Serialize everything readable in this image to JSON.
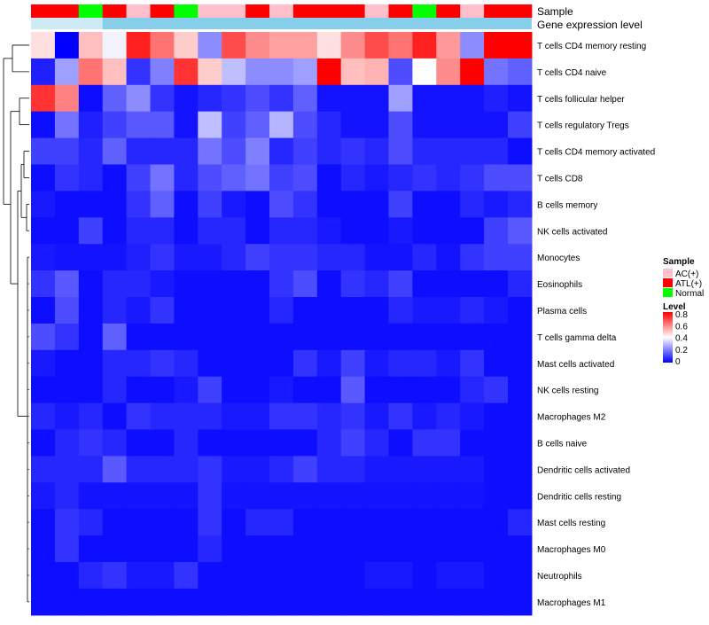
{
  "chart_data": {
    "type": "heatmap",
    "annotation_tracks": [
      "Sample",
      "Gene expression level"
    ],
    "sample_groups": [
      "ATL(+)",
      "ATL(+)",
      "Normal",
      "ATL(+)",
      "AC(+)",
      "ATL(+)",
      "Normal",
      "AC(+)",
      "AC(+)",
      "ATL(+)",
      "AC(+)",
      "ATL(+)",
      "ATL(+)",
      "ATL(+)",
      "AC(+)",
      "ATL(+)",
      "Normal",
      "ATL(+)",
      "AC(+)",
      "ATL(+)",
      "ATL(+)"
    ],
    "rows": [
      "T cells CD4 memory resting",
      "T cells CD4 naive",
      "T cells follicular helper",
      "T cells regulatory  Tregs",
      "T cells CD4 memory activated",
      "T cells CD8",
      "B cells memory",
      "NK cells activated",
      "Monocytes",
      "Eosinophils",
      "Plasma cells",
      "T cells gamma delta",
      "Mast cells activated",
      "NK cells resting",
      "Macrophages M2",
      "B cells naive",
      "Dendritic cells activated",
      "Dendritic cells resting",
      "Mast cells resting",
      "Macrophages M0",
      "Neutrophils",
      "Macrophages M1"
    ],
    "values": [
      [
        0.45,
        0.0,
        0.5,
        0.38,
        0.75,
        0.62,
        0.48,
        0.22,
        0.68,
        0.58,
        0.55,
        0.55,
        0.45,
        0.58,
        0.68,
        0.62,
        0.75,
        0.56,
        0.22,
        0.8,
        0.8
      ],
      [
        0.05,
        0.25,
        0.62,
        0.5,
        0.08,
        0.2,
        0.72,
        0.48,
        0.3,
        0.22,
        0.22,
        0.25,
        0.8,
        0.5,
        0.52,
        0.12,
        0.4,
        0.58,
        0.8,
        0.18,
        0.15
      ],
      [
        0.72,
        0.6,
        0.02,
        0.15,
        0.22,
        0.08,
        0.03,
        0.06,
        0.08,
        0.12,
        0.08,
        0.15,
        0.03,
        0.03,
        0.03,
        0.25,
        0.03,
        0.03,
        0.03,
        0.05,
        0.03
      ],
      [
        0.02,
        0.18,
        0.05,
        0.1,
        0.14,
        0.14,
        0.03,
        0.3,
        0.1,
        0.15,
        0.28,
        0.12,
        0.06,
        0.03,
        0.03,
        0.12,
        0.03,
        0.03,
        0.03,
        0.03,
        0.1
      ],
      [
        0.1,
        0.1,
        0.06,
        0.15,
        0.06,
        0.06,
        0.06,
        0.18,
        0.12,
        0.2,
        0.06,
        0.1,
        0.06,
        0.08,
        0.06,
        0.12,
        0.06,
        0.06,
        0.06,
        0.06,
        0.02
      ],
      [
        0.02,
        0.08,
        0.06,
        0.02,
        0.1,
        0.18,
        0.06,
        0.12,
        0.15,
        0.18,
        0.1,
        0.12,
        0.02,
        0.06,
        0.04,
        0.06,
        0.08,
        0.06,
        0.08,
        0.12,
        0.12
      ],
      [
        0.04,
        0.02,
        0.02,
        0.02,
        0.08,
        0.15,
        0.02,
        0.1,
        0.04,
        0.02,
        0.12,
        0.08,
        0.02,
        0.02,
        0.02,
        0.1,
        0.02,
        0.02,
        0.06,
        0.04,
        0.06
      ],
      [
        0.02,
        0.02,
        0.1,
        0.02,
        0.06,
        0.06,
        0.02,
        0.06,
        0.06,
        0.02,
        0.06,
        0.06,
        0.04,
        0.02,
        0.02,
        0.04,
        0.02,
        0.02,
        0.02,
        0.1,
        0.14
      ],
      [
        0.04,
        0.03,
        0.03,
        0.03,
        0.05,
        0.08,
        0.04,
        0.04,
        0.06,
        0.1,
        0.08,
        0.08,
        0.06,
        0.06,
        0.03,
        0.03,
        0.06,
        0.03,
        0.08,
        0.1,
        0.1
      ],
      [
        0.08,
        0.14,
        0.02,
        0.06,
        0.06,
        0.04,
        0.02,
        0.02,
        0.02,
        0.02,
        0.08,
        0.12,
        0.02,
        0.08,
        0.06,
        0.1,
        0.02,
        0.02,
        0.02,
        0.02,
        0.06
      ],
      [
        0.02,
        0.12,
        0.02,
        0.06,
        0.04,
        0.08,
        0.02,
        0.02,
        0.02,
        0.02,
        0.06,
        0.02,
        0.02,
        0.02,
        0.02,
        0.06,
        0.04,
        0.04,
        0.06,
        0.04,
        0.02
      ],
      [
        0.12,
        0.08,
        0.02,
        0.15,
        0.02,
        0.02,
        0.02,
        0.02,
        0.02,
        0.02,
        0.02,
        0.02,
        0.02,
        0.02,
        0.02,
        0.02,
        0.02,
        0.02,
        0.02,
        0.02,
        0.02
      ],
      [
        0.04,
        0.02,
        0.02,
        0.06,
        0.06,
        0.08,
        0.06,
        0.02,
        0.02,
        0.02,
        0.02,
        0.08,
        0.04,
        0.1,
        0.04,
        0.06,
        0.06,
        0.04,
        0.08,
        0.02,
        0.02
      ],
      [
        0.02,
        0.02,
        0.02,
        0.06,
        0.02,
        0.02,
        0.04,
        0.1,
        0.02,
        0.02,
        0.04,
        0.02,
        0.02,
        0.14,
        0.02,
        0.02,
        0.02,
        0.02,
        0.06,
        0.08,
        0.02
      ],
      [
        0.06,
        0.04,
        0.06,
        0.02,
        0.08,
        0.06,
        0.06,
        0.06,
        0.04,
        0.04,
        0.08,
        0.08,
        0.06,
        0.08,
        0.04,
        0.08,
        0.04,
        0.06,
        0.04,
        0.02,
        0.02
      ],
      [
        0.02,
        0.06,
        0.08,
        0.06,
        0.02,
        0.02,
        0.06,
        0.02,
        0.02,
        0.02,
        0.02,
        0.02,
        0.06,
        0.1,
        0.06,
        0.02,
        0.08,
        0.08,
        0.02,
        0.02,
        0.02
      ],
      [
        0.06,
        0.06,
        0.06,
        0.14,
        0.06,
        0.06,
        0.06,
        0.08,
        0.04,
        0.04,
        0.06,
        0.1,
        0.06,
        0.06,
        0.04,
        0.04,
        0.04,
        0.04,
        0.04,
        0.02,
        0.02
      ],
      [
        0.04,
        0.06,
        0.03,
        0.03,
        0.03,
        0.03,
        0.03,
        0.08,
        0.03,
        0.03,
        0.03,
        0.03,
        0.03,
        0.03,
        0.03,
        0.03,
        0.03,
        0.03,
        0.03,
        0.02,
        0.02
      ],
      [
        0.02,
        0.08,
        0.06,
        0.02,
        0.02,
        0.02,
        0.02,
        0.08,
        0.02,
        0.06,
        0.06,
        0.02,
        0.02,
        0.02,
        0.02,
        0.02,
        0.02,
        0.02,
        0.02,
        0.02,
        0.06
      ],
      [
        0.02,
        0.08,
        0.02,
        0.02,
        0.02,
        0.02,
        0.02,
        0.06,
        0.02,
        0.02,
        0.02,
        0.02,
        0.02,
        0.02,
        0.02,
        0.02,
        0.02,
        0.02,
        0.02,
        0.02,
        0.02
      ],
      [
        0.02,
        0.02,
        0.06,
        0.08,
        0.04,
        0.04,
        0.08,
        0.02,
        0.02,
        0.02,
        0.02,
        0.02,
        0.02,
        0.02,
        0.04,
        0.04,
        0.02,
        0.04,
        0.04,
        0.02,
        0.02
      ],
      [
        0.02,
        0.02,
        0.02,
        0.02,
        0.02,
        0.02,
        0.02,
        0.02,
        0.02,
        0.02,
        0.02,
        0.02,
        0.02,
        0.02,
        0.02,
        0.02,
        0.02,
        0.02,
        0.02,
        0.02,
        0.02
      ]
    ],
    "color_scale": {
      "min": 0,
      "mid": 0.4,
      "max": 0.8,
      "low_color": "#0000ff",
      "mid_color": "#ffffff",
      "high_color": "#ff0000"
    },
    "legend": {
      "sample_title": "Sample",
      "sample_items": [
        {
          "label": "AC(+)",
          "color": "#ffc0cb"
        },
        {
          "label": "ATL(+)",
          "color": "#ff0000"
        },
        {
          "label": "Normal",
          "color": "#00ff00"
        }
      ],
      "level_title": "Level",
      "level_ticks": [
        "0.8",
        "0.6",
        "0.4",
        "0.2",
        "0"
      ]
    },
    "track_color_expression": "#87ceeb"
  }
}
